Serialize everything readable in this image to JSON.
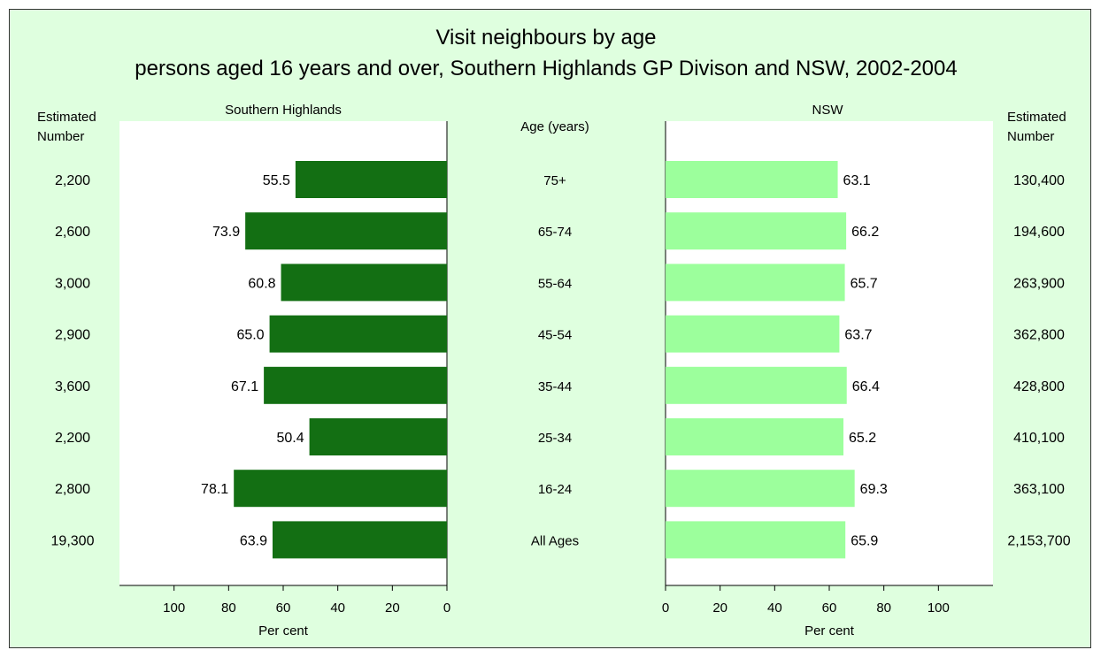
{
  "title": "Visit neighbours by age",
  "subtitle": "persons aged 16 years and over, Southern Highlands GP Divison and NSW, 2002-2004",
  "left_header": "Estimated\nNumber",
  "right_header": "Estimated\nNumber",
  "center_header": "Age (years)",
  "colors": {
    "background": "#dfffdf",
    "left_bar": "#136f13",
    "right_bar": "#9cff9c"
  },
  "chart_data": [
    {
      "type": "bar",
      "orientation": "horizontal",
      "direction": "reversed",
      "title": "Southern Highlands",
      "xlabel": "Per cent",
      "xlim": [
        0,
        120
      ],
      "ticks": [
        0,
        20,
        40,
        60,
        80,
        100
      ],
      "categories": [
        "75+",
        "65-74",
        "55-64",
        "45-54",
        "35-44",
        "25-34",
        "16-24",
        "All Ages"
      ],
      "values": [
        55.5,
        73.9,
        60.8,
        65.0,
        67.1,
        50.4,
        78.1,
        63.9
      ],
      "labels": [
        "55.5",
        "73.9",
        "60.8",
        "65.0",
        "67.1",
        "50.4",
        "78.1",
        "63.9"
      ],
      "estimated_number": [
        "2,200",
        "2,600",
        "3,000",
        "2,900",
        "3,600",
        "2,200",
        "2,800",
        "19,300"
      ]
    },
    {
      "type": "bar",
      "orientation": "horizontal",
      "title": "NSW",
      "xlabel": "Per cent",
      "xlim": [
        0,
        120
      ],
      "ticks": [
        0,
        20,
        40,
        60,
        80,
        100
      ],
      "categories": [
        "75+",
        "65-74",
        "55-64",
        "45-54",
        "35-44",
        "25-34",
        "16-24",
        "All Ages"
      ],
      "values": [
        63.1,
        66.2,
        65.7,
        63.7,
        66.4,
        65.2,
        69.3,
        65.9
      ],
      "labels": [
        "63.1",
        "66.2",
        "65.7",
        "63.7",
        "66.4",
        "65.2",
        "69.3",
        "65.9"
      ],
      "estimated_number": [
        "130,400",
        "194,600",
        "263,900",
        "362,800",
        "428,800",
        "410,100",
        "363,100",
        "2,153,700"
      ]
    }
  ]
}
